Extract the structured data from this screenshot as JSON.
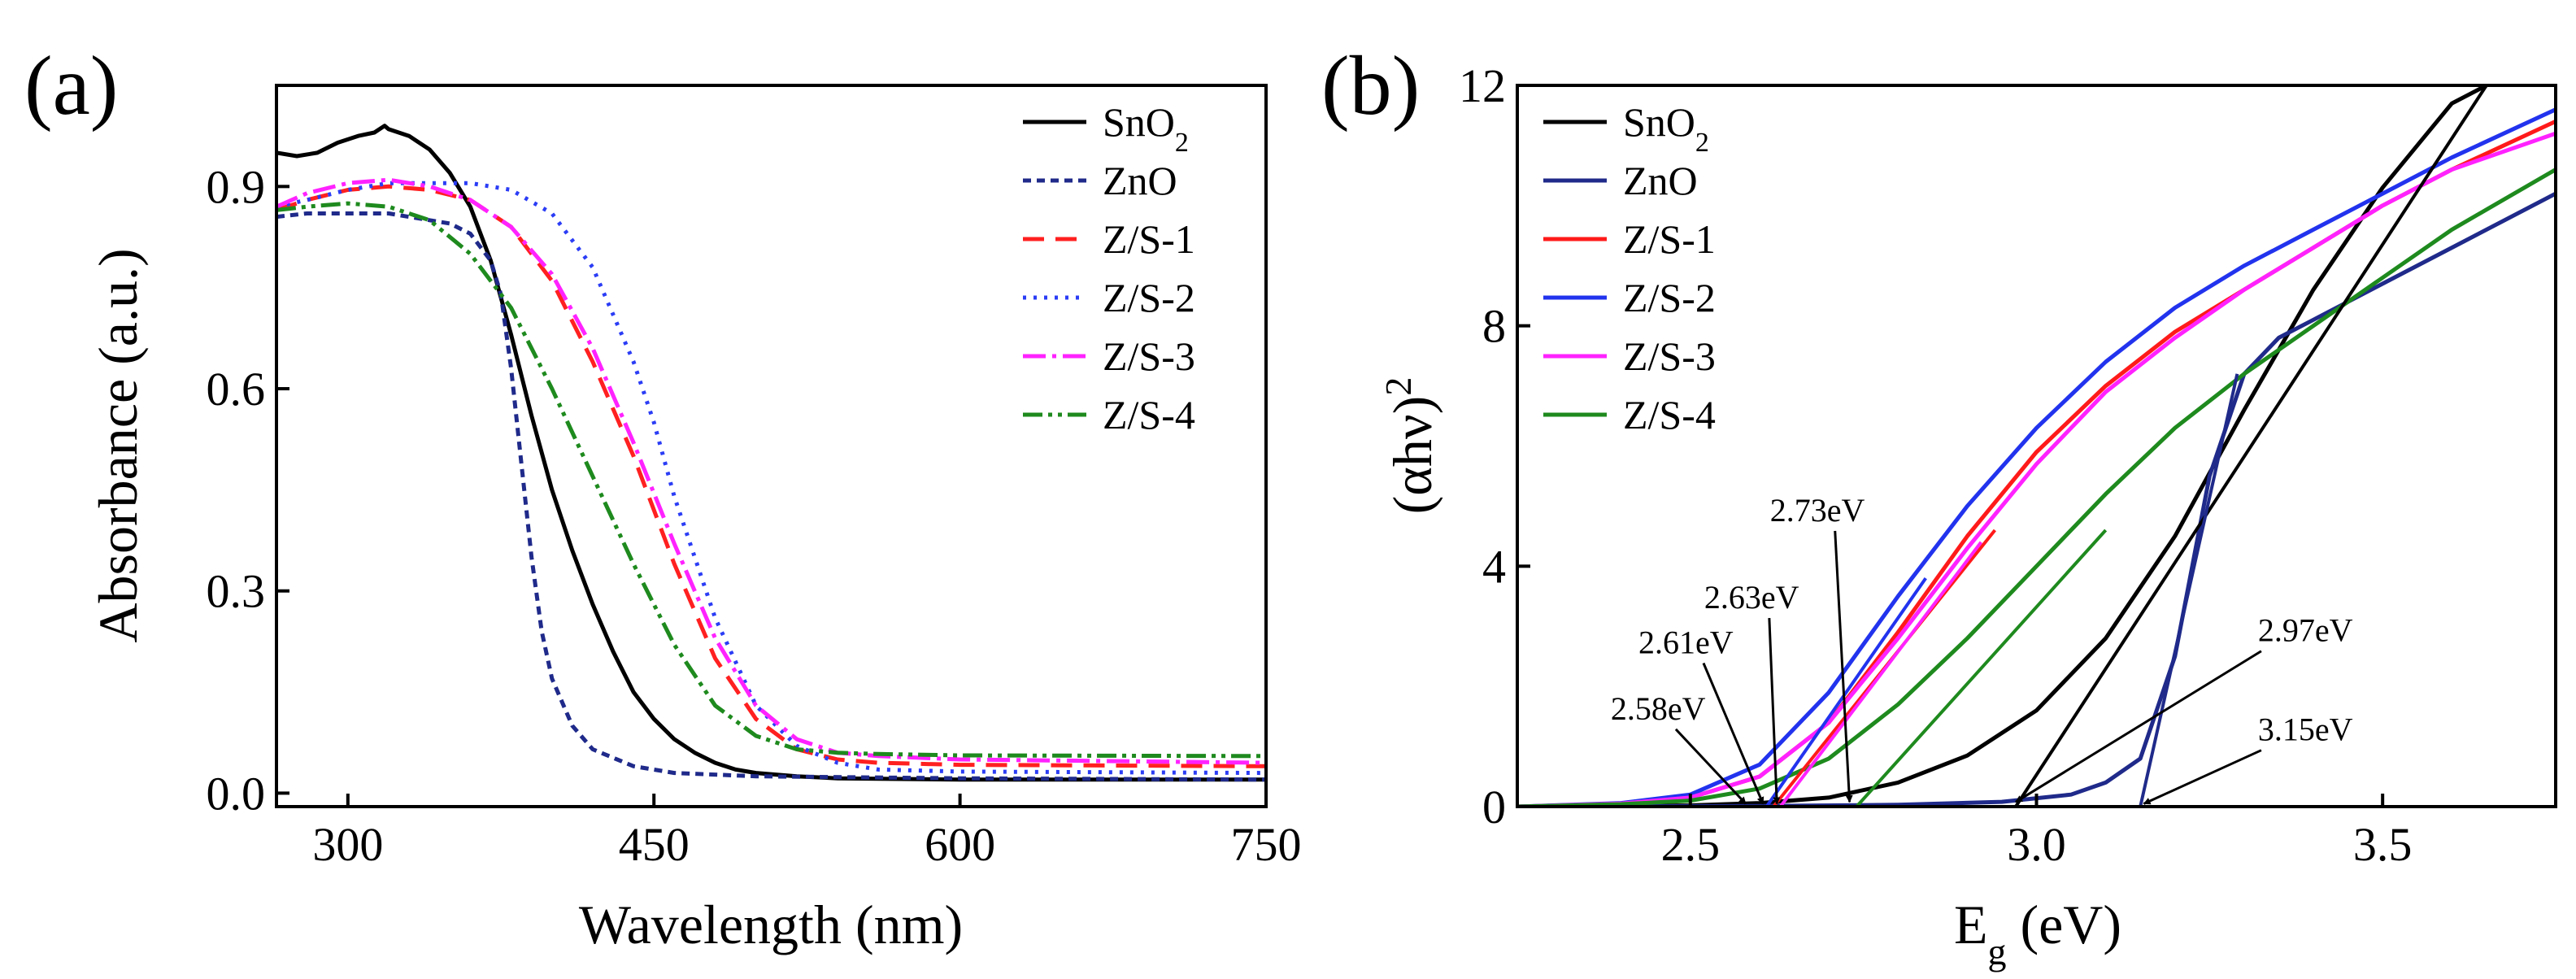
{
  "chart_data": [
    {
      "type": "line",
      "panel_label": "(a)",
      "xlabel": "Wavelength (nm)",
      "ylabel": "Absorbance (a.u.)",
      "xlim": [
        265,
        750
      ],
      "ylim": [
        -0.02,
        1.05
      ],
      "xticks": [
        300,
        450,
        600,
        750
      ],
      "xtick_labels": [
        "300",
        "450",
        "600",
        "750"
      ],
      "yticks": [
        0.0,
        0.3,
        0.6,
        0.9
      ],
      "ytick_labels": [
        "0.0",
        "0.3",
        "0.6",
        "0.9"
      ],
      "grid": false,
      "legend_position": "top-right",
      "series": [
        {
          "name": "SnO2",
          "label_base": "SnO",
          "label_sub": "2",
          "color": "#000000",
          "dash": "solid",
          "x": [
            265,
            275,
            285,
            295,
            305,
            313,
            318,
            320,
            330,
            340,
            350,
            360,
            370,
            380,
            390,
            400,
            410,
            420,
            430,
            440,
            450,
            460,
            470,
            480,
            490,
            500,
            520,
            540,
            600,
            750
          ],
          "y": [
            0.95,
            0.945,
            0.95,
            0.965,
            0.975,
            0.98,
            0.99,
            0.985,
            0.975,
            0.955,
            0.92,
            0.87,
            0.79,
            0.68,
            0.56,
            0.45,
            0.36,
            0.28,
            0.21,
            0.15,
            0.11,
            0.08,
            0.06,
            0.045,
            0.035,
            0.03,
            0.025,
            0.022,
            0.02,
            0.02
          ]
        },
        {
          "name": "ZnO",
          "label_base": "ZnO",
          "label_sub": "",
          "color": "#1f2a8a",
          "dash": "10,7",
          "x": [
            265,
            280,
            300,
            320,
            340,
            350,
            360,
            370,
            375,
            380,
            385,
            390,
            395,
            400,
            410,
            420,
            440,
            460,
            500,
            600,
            750
          ],
          "y": [
            0.855,
            0.86,
            0.86,
            0.86,
            0.85,
            0.845,
            0.83,
            0.79,
            0.74,
            0.63,
            0.49,
            0.35,
            0.24,
            0.17,
            0.1,
            0.065,
            0.04,
            0.03,
            0.025,
            0.022,
            0.02
          ]
        },
        {
          "name": "Z/S-1",
          "label_base": "Z/S-1",
          "label_sub": "",
          "color": "#ff2020",
          "dash": "26,14",
          "x": [
            265,
            280,
            300,
            320,
            340,
            360,
            380,
            400,
            420,
            440,
            450,
            460,
            480,
            500,
            520,
            540,
            560,
            600,
            750
          ],
          "y": [
            0.865,
            0.88,
            0.895,
            0.9,
            0.895,
            0.88,
            0.84,
            0.76,
            0.64,
            0.5,
            0.42,
            0.34,
            0.2,
            0.11,
            0.065,
            0.05,
            0.045,
            0.042,
            0.04
          ]
        },
        {
          "name": "Z/S-2",
          "label_base": "Z/S-2",
          "label_sub": "",
          "color": "#2b3df5",
          "dash": "4,9",
          "x": [
            265,
            280,
            300,
            320,
            340,
            360,
            380,
            400,
            420,
            440,
            450,
            460,
            480,
            500,
            520,
            540,
            560,
            600,
            750
          ],
          "y": [
            0.87,
            0.88,
            0.895,
            0.905,
            0.905,
            0.905,
            0.895,
            0.86,
            0.78,
            0.64,
            0.55,
            0.44,
            0.26,
            0.13,
            0.07,
            0.045,
            0.035,
            0.032,
            0.03
          ]
        },
        {
          "name": "Z/S-3",
          "label_base": "Z/S-3",
          "label_sub": "",
          "color": "#ff22ff",
          "dash": "28,8,5,8",
          "x": [
            265,
            280,
            300,
            320,
            340,
            360,
            380,
            400,
            420,
            440,
            460,
            480,
            500,
            520,
            540,
            560,
            600,
            750
          ],
          "y": [
            0.87,
            0.89,
            0.905,
            0.91,
            0.9,
            0.88,
            0.84,
            0.77,
            0.66,
            0.52,
            0.37,
            0.23,
            0.13,
            0.08,
            0.06,
            0.055,
            0.05,
            0.045
          ]
        },
        {
          "name": "Z/S-4",
          "label_base": "Z/S-4",
          "label_sub": "",
          "color": "#1e8a1e",
          "dash": "24,7,5,7,5,7",
          "x": [
            265,
            280,
            300,
            320,
            340,
            360,
            380,
            400,
            420,
            440,
            460,
            480,
            500,
            520,
            540,
            560,
            600,
            750
          ],
          "y": [
            0.865,
            0.87,
            0.875,
            0.87,
            0.85,
            0.8,
            0.72,
            0.6,
            0.47,
            0.34,
            0.22,
            0.13,
            0.085,
            0.065,
            0.06,
            0.058,
            0.056,
            0.055
          ]
        }
      ]
    },
    {
      "type": "line",
      "panel_label": "(b)",
      "xlabel_base": "E",
      "xlabel_sub": "g",
      "xlabel_rest": " (eV)",
      "ylabel_base": "(αhν)",
      "ylabel_sup": "2",
      "xlim": [
        2.25,
        3.75
      ],
      "ylim": [
        0,
        12
      ],
      "xticks": [
        2.5,
        3.0,
        3.5
      ],
      "xtick_labels": [
        "2.5",
        "3.0",
        "3.5"
      ],
      "yticks": [
        0,
        4,
        8,
        12
      ],
      "ytick_labels": [
        "0",
        "4",
        "8",
        "12"
      ],
      "grid": false,
      "legend_position": "top-left",
      "series": [
        {
          "name": "SnO2",
          "label_base": "SnO",
          "label_sub": "2",
          "color": "#000000",
          "x": [
            2.25,
            2.5,
            2.6,
            2.7,
            2.8,
            2.9,
            3.0,
            3.1,
            3.2,
            3.3,
            3.4,
            3.5,
            3.6,
            3.65
          ],
          "y": [
            0,
            0.02,
            0.06,
            0.15,
            0.4,
            0.85,
            1.6,
            2.8,
            4.5,
            6.6,
            8.6,
            10.3,
            11.7,
            12.0
          ]
        },
        {
          "name": "ZnO",
          "label_base": "ZnO",
          "label_sub": "",
          "color": "#1f2a8a",
          "x": [
            2.25,
            2.6,
            2.8,
            2.95,
            3.05,
            3.1,
            3.15,
            3.2,
            3.25,
            3.3,
            3.35,
            3.4,
            3.5,
            3.6,
            3.75
          ],
          "y": [
            0,
            0.01,
            0.03,
            0.08,
            0.2,
            0.4,
            0.8,
            2.5,
            5.5,
            7.2,
            7.8,
            8.1,
            8.7,
            9.3,
            10.2
          ]
        },
        {
          "name": "Z/S-1",
          "label_base": "Z/S-1",
          "label_sub": "",
          "color": "#ff1a1a",
          "x": [
            2.25,
            2.4,
            2.5,
            2.6,
            2.7,
            2.8,
            2.9,
            3.0,
            3.1,
            3.2,
            3.3,
            3.4,
            3.5,
            3.6,
            3.75
          ],
          "y": [
            0,
            0.05,
            0.15,
            0.5,
            1.4,
            2.9,
            4.5,
            5.9,
            7.0,
            7.9,
            8.6,
            9.3,
            10.0,
            10.6,
            11.4
          ]
        },
        {
          "name": "Z/S-2",
          "label_base": "Z/S-2",
          "label_sub": "",
          "color": "#2233ee",
          "x": [
            2.25,
            2.4,
            2.5,
            2.6,
            2.7,
            2.8,
            2.9,
            3.0,
            3.1,
            3.2,
            3.3,
            3.4,
            3.5,
            3.6,
            3.75
          ],
          "y": [
            0,
            0.06,
            0.2,
            0.7,
            1.9,
            3.5,
            5.0,
            6.3,
            7.4,
            8.3,
            9.0,
            9.6,
            10.2,
            10.8,
            11.6
          ]
        },
        {
          "name": "Z/S-3",
          "label_base": "Z/S-3",
          "label_sub": "",
          "color": "#ff22ff",
          "x": [
            2.25,
            2.4,
            2.5,
            2.6,
            2.7,
            2.8,
            2.9,
            3.0,
            3.1,
            3.2,
            3.3,
            3.4,
            3.5,
            3.6,
            3.75
          ],
          "y": [
            0,
            0.05,
            0.15,
            0.5,
            1.4,
            2.8,
            4.3,
            5.7,
            6.9,
            7.8,
            8.6,
            9.3,
            10.0,
            10.6,
            11.2
          ]
        },
        {
          "name": "Z/S-4",
          "label_base": "Z/S-4",
          "label_sub": "",
          "color": "#1e8a1e",
          "x": [
            2.25,
            2.4,
            2.5,
            2.6,
            2.7,
            2.8,
            2.9,
            3.0,
            3.1,
            3.2,
            3.3,
            3.4,
            3.5,
            3.6,
            3.75
          ],
          "y": [
            0,
            0.04,
            0.1,
            0.3,
            0.8,
            1.7,
            2.8,
            4.0,
            5.2,
            6.3,
            7.2,
            8.0,
            8.8,
            9.6,
            10.6
          ]
        }
      ],
      "tangent_lines": [
        {
          "color": "#ff1a1a",
          "x": [
            2.62,
            2.94
          ],
          "y": [
            0,
            4.6
          ]
        },
        {
          "color": "#2233ee",
          "x": [
            2.61,
            2.84
          ],
          "y": [
            0,
            3.8
          ]
        },
        {
          "color": "#ff22ff",
          "x": [
            2.63,
            2.92
          ],
          "y": [
            0,
            4.4
          ]
        },
        {
          "color": "#1e8a1e",
          "x": [
            2.74,
            3.1
          ],
          "y": [
            0,
            4.6
          ]
        },
        {
          "color": "#000000",
          "x": [
            2.97,
            3.65
          ],
          "y": [
            0,
            12.0
          ]
        },
        {
          "color": "#1f2a8a",
          "x": [
            3.15,
            3.29
          ],
          "y": [
            0,
            7.2
          ]
        }
      ],
      "annotations": [
        {
          "text": "2.58eV",
          "label_x": 2.385,
          "label_y": 1.45,
          "tip_x": 2.58,
          "tip_y": 0.02
        },
        {
          "text": "2.61eV",
          "label_x": 2.425,
          "label_y": 2.55,
          "tip_x": 2.605,
          "tip_y": 0.02
        },
        {
          "text": "2.63eV",
          "label_x": 2.52,
          "label_y": 3.3,
          "tip_x": 2.625,
          "tip_y": 0.02
        },
        {
          "text": "2.73eV",
          "label_x": 2.615,
          "label_y": 4.75,
          "tip_x": 2.73,
          "tip_y": 0.05
        },
        {
          "text": "2.97eV",
          "label_x": 3.32,
          "label_y": 2.75,
          "tip_x": 2.97,
          "tip_y": 0.05
        },
        {
          "text": "3.15eV",
          "label_x": 3.32,
          "label_y": 1.1,
          "tip_x": 3.155,
          "tip_y": 0.02
        }
      ]
    }
  ]
}
